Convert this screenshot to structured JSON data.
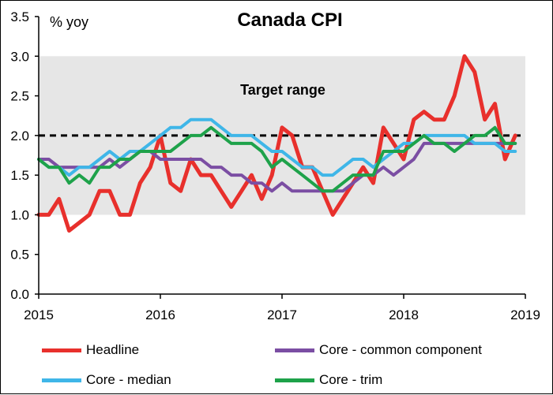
{
  "chart_data": {
    "type": "line",
    "title": "Canada CPI",
    "ylabel": "% yoy",
    "annotation": "Target range",
    "xlim": [
      2015,
      2019
    ],
    "ylim": [
      0,
      3.5
    ],
    "x_ticks": [
      "2015",
      "2016",
      "2017",
      "2018",
      "2019"
    ],
    "y_ticks": [
      "0.0",
      "0.5",
      "1.0",
      "1.5",
      "2.0",
      "2.5",
      "3.0",
      "3.5"
    ],
    "target_band": [
      1,
      3
    ],
    "reference_line": 2.0,
    "x": [
      "2015-01",
      "2015-02",
      "2015-03",
      "2015-04",
      "2015-05",
      "2015-06",
      "2015-07",
      "2015-08",
      "2015-09",
      "2015-10",
      "2015-11",
      "2015-12",
      "2016-01",
      "2016-02",
      "2016-03",
      "2016-04",
      "2016-05",
      "2016-06",
      "2016-07",
      "2016-08",
      "2016-09",
      "2016-10",
      "2016-11",
      "2016-12",
      "2017-01",
      "2017-02",
      "2017-03",
      "2017-04",
      "2017-05",
      "2017-06",
      "2017-07",
      "2017-08",
      "2017-09",
      "2017-10",
      "2017-11",
      "2017-12",
      "2018-01",
      "2018-02",
      "2018-03",
      "2018-04",
      "2018-05",
      "2018-06",
      "2018-07",
      "2018-08",
      "2018-09",
      "2018-10",
      "2018-11",
      "2018-12"
    ],
    "series": [
      {
        "name": "Headline",
        "color": "#e8302c",
        "values": [
          1.0,
          1.0,
          1.2,
          0.8,
          0.9,
          1.0,
          1.3,
          1.3,
          1.0,
          1.0,
          1.4,
          1.6,
          2.0,
          1.4,
          1.3,
          1.7,
          1.5,
          1.5,
          1.3,
          1.1,
          1.3,
          1.5,
          1.2,
          1.5,
          2.1,
          2.0,
          1.6,
          1.6,
          1.3,
          1.0,
          1.2,
          1.4,
          1.6,
          1.4,
          2.1,
          1.9,
          1.7,
          2.2,
          2.3,
          2.2,
          2.2,
          2.5,
          3.0,
          2.8,
          2.2,
          2.4,
          1.7,
          2.0
        ]
      },
      {
        "name": "Core - common component",
        "color": "#7b4ea3",
        "values": [
          1.7,
          1.7,
          1.6,
          1.6,
          1.6,
          1.6,
          1.6,
          1.7,
          1.6,
          1.7,
          1.8,
          1.8,
          1.7,
          1.7,
          1.7,
          1.7,
          1.7,
          1.6,
          1.6,
          1.5,
          1.5,
          1.4,
          1.4,
          1.3,
          1.4,
          1.3,
          1.3,
          1.3,
          1.3,
          1.3,
          1.3,
          1.4,
          1.5,
          1.5,
          1.6,
          1.5,
          1.6,
          1.7,
          1.9,
          1.9,
          1.9,
          1.9,
          1.9,
          1.9,
          1.9,
          1.9,
          1.9,
          1.9
        ]
      },
      {
        "name": "Core - median",
        "color": "#3fb6e8",
        "values": [
          1.7,
          1.6,
          1.6,
          1.5,
          1.6,
          1.6,
          1.7,
          1.8,
          1.7,
          1.8,
          1.8,
          1.9,
          2.0,
          2.1,
          2.1,
          2.2,
          2.2,
          2.2,
          2.1,
          2.0,
          2.0,
          2.0,
          1.9,
          1.8,
          1.8,
          1.7,
          1.6,
          1.6,
          1.5,
          1.5,
          1.6,
          1.7,
          1.7,
          1.6,
          1.7,
          1.8,
          1.9,
          1.9,
          2.0,
          2.0,
          2.0,
          2.0,
          2.0,
          1.9,
          1.9,
          1.9,
          1.8,
          1.8
        ]
      },
      {
        "name": "Core - trim",
        "color": "#1ea24a",
        "values": [
          1.7,
          1.6,
          1.6,
          1.4,
          1.5,
          1.4,
          1.6,
          1.6,
          1.7,
          1.7,
          1.8,
          1.8,
          1.8,
          1.8,
          1.9,
          2.0,
          2.0,
          2.1,
          2.0,
          1.9,
          1.9,
          1.9,
          1.8,
          1.6,
          1.7,
          1.6,
          1.5,
          1.4,
          1.3,
          1.3,
          1.4,
          1.5,
          1.5,
          1.5,
          1.8,
          1.8,
          1.8,
          1.9,
          2.0,
          1.9,
          1.9,
          1.8,
          1.9,
          2.0,
          2.0,
          2.1,
          1.9,
          1.9
        ]
      }
    ],
    "legend_position": "bottom",
    "grid": false
  }
}
